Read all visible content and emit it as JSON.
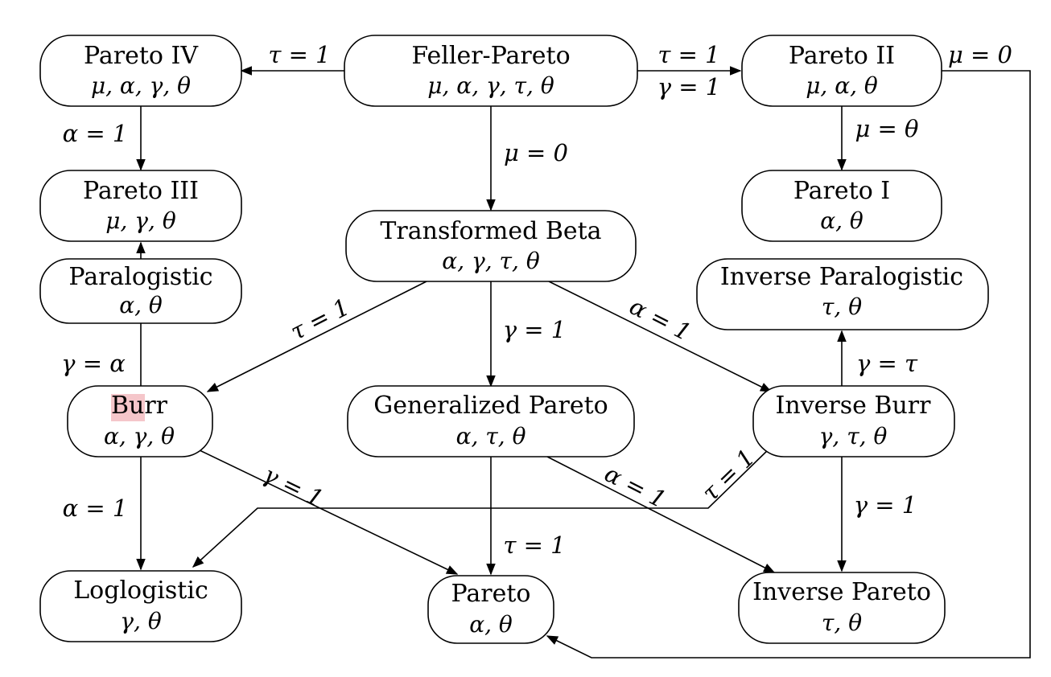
{
  "nodes": {
    "pareto_iv": {
      "title": "Pareto IV",
      "params": "μ, α, γ, θ"
    },
    "feller_pareto": {
      "title": "Feller-Pareto",
      "params": "μ, α, γ, τ, θ"
    },
    "pareto_ii": {
      "title": "Pareto II",
      "params": "μ, α, θ"
    },
    "pareto_iii": {
      "title": "Pareto III",
      "params": "μ, γ, θ"
    },
    "pareto_i": {
      "title": "Pareto I",
      "params": "α, θ"
    },
    "transformed_beta": {
      "title": "Transformed Beta",
      "params": "α, γ, τ, θ"
    },
    "paralogistic": {
      "title": "Paralogistic",
      "params": "α, θ"
    },
    "inverse_paralogistic": {
      "title": "Inverse Paralogistic",
      "params": "τ, θ"
    },
    "burr": {
      "title": "Burr",
      "params": "α, γ, θ"
    },
    "generalized_pareto": {
      "title": "Generalized Pareto",
      "params": "α, τ, θ"
    },
    "inverse_burr": {
      "title": "Inverse Burr",
      "params": "γ, τ, θ"
    },
    "loglogistic": {
      "title": "Loglogistic",
      "params": "γ, θ"
    },
    "pareto": {
      "title": "Pareto",
      "params": "α, θ"
    },
    "inverse_pareto": {
      "title": "Inverse Pareto",
      "params": "τ, θ"
    }
  },
  "edges": {
    "fp_to_p4": "τ = 1",
    "fp_to_p2_a": "τ = 1",
    "fp_to_p2_b": "γ = 1",
    "p2_to_pareto": "μ = 0",
    "p4_to_p3": "α = 1",
    "fp_to_tb": "μ = 0",
    "p2_to_p1": "μ = θ",
    "tb_to_burr": "τ = 1",
    "tb_to_gp": "γ = 1",
    "tb_to_ib": "α = 1",
    "burr_to_paralogistic": "γ = α",
    "ib_to_inv_paralogistic": "γ = τ",
    "burr_to_pareto": "γ = 1",
    "gp_to_ip": "α = 1",
    "ib_to_loglogistic": "τ = 1",
    "burr_to_loglogistic": "α = 1",
    "gp_to_pareto": "τ = 1",
    "ib_to_ip": "γ = 1"
  },
  "highlight": {
    "target": "burr",
    "color": "#f2b3b8"
  }
}
